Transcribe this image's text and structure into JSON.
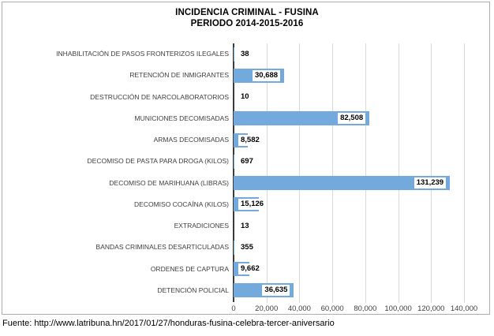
{
  "title": {
    "line1": "INCIDENCIA CRIMINAL - FUSINA",
    "line2": "PERIODO 2014-2015-2016"
  },
  "footer": {
    "source_text": "Fuente: http://www.latribuna.hn/2017/01/27/honduras-fusina-celebra-tercer-aniversario"
  },
  "chart_data": {
    "type": "bar",
    "orientation": "horizontal",
    "title": "INCIDENCIA CRIMINAL - FUSINA PERIODO 2014-2015-2016",
    "categories": [
      "INHABILITACIÓN DE PASOS FRONTERIZOS ILEGALES",
      "RETENCIÓN DE INMIGRANTES",
      "DESTRUCCIÓN DE NARCOLABORATORIOS",
      "MUNICIONES DECOMISADAS",
      "ARMAS DECOMISADAS",
      "DECOMISO DE PASTA PARA DROGA (KILOS)",
      "DECOMISO DE MARIHUANA (LIBRAS)",
      "DECOMISO COCAÍNA (KILOS)",
      "EXTRADICIONES",
      "BANDAS CRIMINALES DESARTICULADAS",
      "ORDENES DE CAPTURA",
      "DETENCIÓN POLICIAL"
    ],
    "values": [
      38,
      30688,
      10,
      82508,
      8582,
      697,
      131239,
      15126,
      13,
      355,
      9662,
      36635
    ],
    "value_labels": [
      "38",
      "30,688",
      "10",
      "82,508",
      "8,582",
      "697",
      "131,239",
      "15,126",
      "13",
      "355",
      "9,662",
      "36,635"
    ],
    "xlim": [
      0,
      140000
    ],
    "x_tick_values": [
      0,
      20000,
      40000,
      60000,
      80000,
      100000,
      120000,
      140000
    ],
    "x_tick_labels": [
      "0",
      "20,000",
      "40,000",
      "60,000",
      "80,000",
      "100,000",
      "120,000",
      "140,000"
    ],
    "grid": true,
    "legend": "none",
    "bar_color": "#73a9dc",
    "gridline_color": "#d9d9d9",
    "axis_line_color": "#3b3b3b"
  }
}
